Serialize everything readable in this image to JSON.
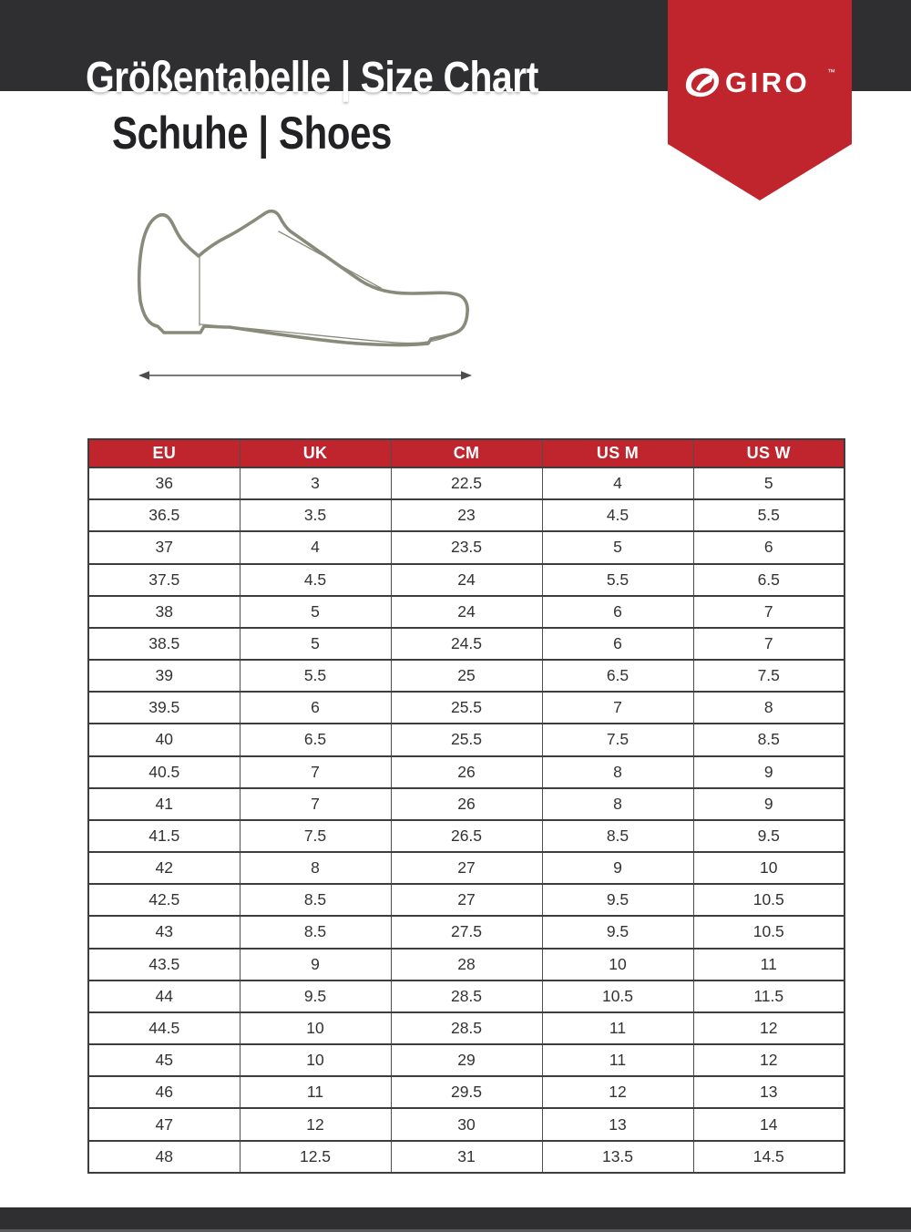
{
  "page": {
    "title": "Größentabelle | Size Chart",
    "subtitle": "Schuhe | Shoes"
  },
  "brand": {
    "name": "GIRO",
    "trademark": "™"
  },
  "colors": {
    "accent_red": "#c0242c",
    "bar_dark": "#2f2e30",
    "table_border": "#3d3d3d",
    "shoe_line": "#8a8a7b",
    "arrow": "#4d4d4d"
  },
  "shoe_diagram": {
    "description": "cycling shoe side view line drawing with shoe-length measurement arrow"
  },
  "table": {
    "headers": [
      "EU",
      "UK",
      "CM",
      "US M",
      "US W"
    ],
    "rows": [
      [
        "36",
        "3",
        "22.5",
        "4",
        "5"
      ],
      [
        "36.5",
        "3.5",
        "23",
        "4.5",
        "5.5"
      ],
      [
        "37",
        "4",
        "23.5",
        "5",
        "6"
      ],
      [
        "37.5",
        "4.5",
        "24",
        "5.5",
        "6.5"
      ],
      [
        "38",
        "5",
        "24",
        "6",
        "7"
      ],
      [
        "38.5",
        "5",
        "24.5",
        "6",
        "7"
      ],
      [
        "39",
        "5.5",
        "25",
        "6.5",
        "7.5"
      ],
      [
        "39.5",
        "6",
        "25.5",
        "7",
        "8"
      ],
      [
        "40",
        "6.5",
        "25.5",
        "7.5",
        "8.5"
      ],
      [
        "40.5",
        "7",
        "26",
        "8",
        "9"
      ],
      [
        "41",
        "7",
        "26",
        "8",
        "9"
      ],
      [
        "41.5",
        "7.5",
        "26.5",
        "8.5",
        "9.5"
      ],
      [
        "42",
        "8",
        "27",
        "9",
        "10"
      ],
      [
        "42.5",
        "8.5",
        "27",
        "9.5",
        "10.5"
      ],
      [
        "43",
        "8.5",
        "27.5",
        "9.5",
        "10.5"
      ],
      [
        "43.5",
        "9",
        "28",
        "10",
        "11"
      ],
      [
        "44",
        "9.5",
        "28.5",
        "10.5",
        "11.5"
      ],
      [
        "44.5",
        "10",
        "28.5",
        "11",
        "12"
      ],
      [
        "45",
        "10",
        "29",
        "11",
        "12"
      ],
      [
        "46",
        "11",
        "29.5",
        "12",
        "13"
      ],
      [
        "47",
        "12",
        "30",
        "13",
        "14"
      ],
      [
        "48",
        "12.5",
        "31",
        "13.5",
        "14.5"
      ]
    ]
  }
}
